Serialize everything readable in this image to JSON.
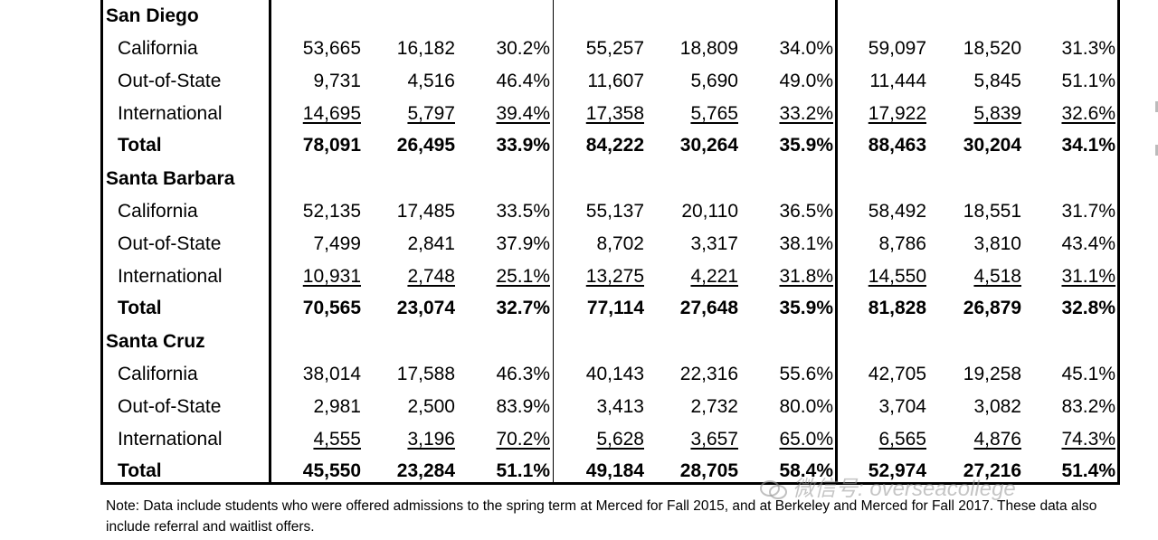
{
  "table": {
    "sections": [
      {
        "campus": "San Diego",
        "rows": [
          {
            "label": "California",
            "values": [
              "53,665",
              "16,182",
              "30.2%",
              "55,257",
              "18,809",
              "34.0%",
              "59,097",
              "18,520",
              "31.3%"
            ]
          },
          {
            "label": "Out-of-State",
            "values": [
              "9,731",
              "4,516",
              "46.4%",
              "11,607",
              "5,690",
              "49.0%",
              "11,444",
              "5,845",
              "51.1%"
            ]
          },
          {
            "label": "International",
            "values": [
              "14,695",
              "5,797",
              "39.4%",
              "17,358",
              "5,765",
              "33.2%",
              "17,922",
              "5,839",
              "32.6%"
            ]
          },
          {
            "label": "Total",
            "values": [
              "78,091",
              "26,495",
              "33.9%",
              "84,222",
              "30,264",
              "35.9%",
              "88,463",
              "30,204",
              "34.1%"
            ]
          }
        ]
      },
      {
        "campus": "Santa Barbara",
        "rows": [
          {
            "label": "California",
            "values": [
              "52,135",
              "17,485",
              "33.5%",
              "55,137",
              "20,110",
              "36.5%",
              "58,492",
              "18,551",
              "31.7%"
            ]
          },
          {
            "label": "Out-of-State",
            "values": [
              "7,499",
              "2,841",
              "37.9%",
              "8,702",
              "3,317",
              "38.1%",
              "8,786",
              "3,810",
              "43.4%"
            ]
          },
          {
            "label": "International",
            "values": [
              "10,931",
              "2,748",
              "25.1%",
              "13,275",
              "4,221",
              "31.8%",
              "14,550",
              "4,518",
              "31.1%"
            ]
          },
          {
            "label": "Total",
            "values": [
              "70,565",
              "23,074",
              "32.7%",
              "77,114",
              "27,648",
              "35.9%",
              "81,828",
              "26,879",
              "32.8%"
            ]
          }
        ]
      },
      {
        "campus": "Santa Cruz",
        "rows": [
          {
            "label": "California",
            "values": [
              "38,014",
              "17,588",
              "46.3%",
              "40,143",
              "22,316",
              "55.6%",
              "42,705",
              "19,258",
              "45.1%"
            ]
          },
          {
            "label": "Out-of-State",
            "values": [
              "2,981",
              "2,500",
              "83.9%",
              "3,413",
              "2,732",
              "80.0%",
              "3,704",
              "3,082",
              "83.2%"
            ]
          },
          {
            "label": "International",
            "values": [
              "4,555",
              "3,196",
              "70.2%",
              "5,628",
              "3,657",
              "65.0%",
              "6,565",
              "4,876",
              "74.3%"
            ]
          },
          {
            "label": "Total",
            "values": [
              "45,550",
              "23,284",
              "51.1%",
              "49,184",
              "28,705",
              "58.4%",
              "52,974",
              "27,216",
              "51.4%"
            ]
          }
        ]
      }
    ]
  },
  "note": "Note: Data include students who were offered admissions to the spring term at Merced for Fall 2015, and at Berkeley and Merced for Fall 2017. These data also include referral and waitlist offers.",
  "watermark": "微信号: overseacollege",
  "watermark_icon": "wechat-icon"
}
